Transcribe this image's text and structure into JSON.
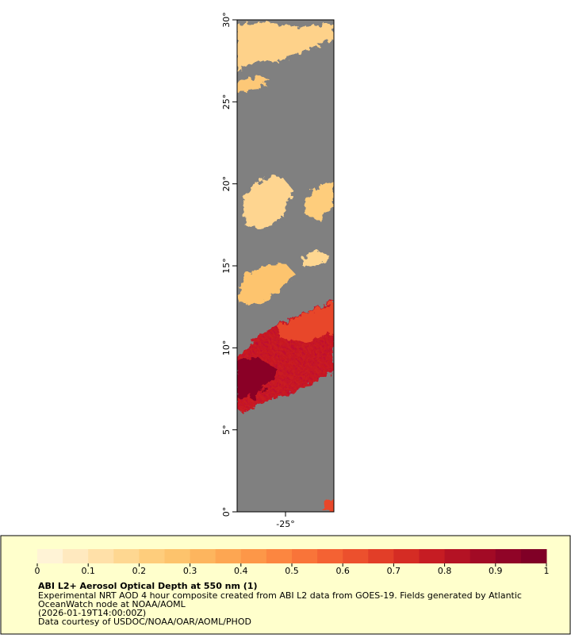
{
  "map": {
    "latlim": [
      0,
      30
    ],
    "lonlim": [
      -27.95,
      -22.05
    ],
    "lat_ticks": [
      {
        "value": 0,
        "label": "0°"
      },
      {
        "value": 5,
        "label": "5°"
      },
      {
        "value": 10,
        "label": "10°"
      },
      {
        "value": 15,
        "label": "15°"
      },
      {
        "value": 20,
        "label": "20°"
      },
      {
        "value": 25,
        "label": "25°"
      },
      {
        "value": 30,
        "label": "30°"
      }
    ],
    "lon_ticks": [
      {
        "value": -25,
        "label": "-25°"
      }
    ]
  },
  "colorbar": {
    "lim": [
      0,
      1
    ],
    "ticks": [
      0,
      0.1,
      0.2,
      0.3,
      0.4,
      0.5,
      0.6,
      0.7,
      0.8,
      0.9,
      1
    ],
    "colors": [
      "#fff3d6",
      "#ffe9bf",
      "#ffe0a8",
      "#fed791",
      "#fecd7c",
      "#fdc36c",
      "#fdb55e",
      "#fda652",
      "#fd9748",
      "#fc8640",
      "#f97439",
      "#f46233",
      "#ec502d",
      "#e23e28",
      "#d52c24",
      "#c61c23",
      "#b41224",
      "#a20a25",
      "#900427",
      "#800026"
    ]
  },
  "caption": {
    "title": "ABI L2+ Aerosol Optical Depth at 550 nm (1)",
    "lines": [
      "Experimental NRT AOD 4 hour composite created from ABI L2 data from GOES-19. Fields generated by Atlantic",
      "OceanWatch node at NOAA/AOML",
      "(2026-01-19T14:00:00Z)",
      "Data courtesy of USDOC/NOAA/OAR/AOML/PHOD"
    ]
  }
}
